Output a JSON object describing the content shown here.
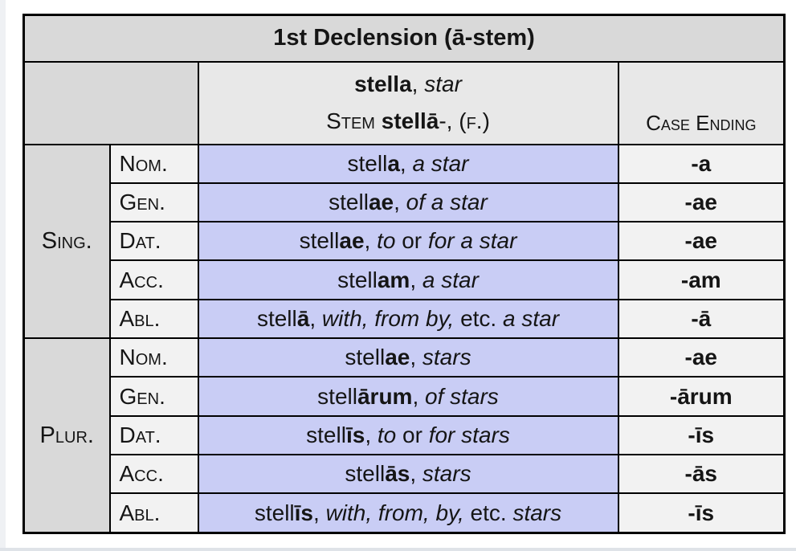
{
  "window": {
    "background": "#ffffff",
    "left_edge_color": "#eff1f4",
    "bottom_edge_color": "#dfe3e8"
  },
  "colors": {
    "border": "#000000",
    "title_bg": "#d9d9d9",
    "header_bg": "#e8e8e8",
    "group_bg": "#d9d9d9",
    "case_label_bg": "#f2f2f2",
    "latin_bg": "#c9cdf5",
    "ending_bg": "#f2f2f2",
    "text": "#151515"
  },
  "table": {
    "title": "1st Declension (ā-stem)",
    "header": {
      "word_line": [
        {
          "t": "stella",
          "s": "b"
        },
        {
          "t": ", ",
          "s": "n"
        },
        {
          "t": "star",
          "s": "i"
        }
      ],
      "stem_line": [
        {
          "t": "Stem ",
          "s": "sc"
        },
        {
          "t": "stellā",
          "s": "b"
        },
        {
          "t": "-, ",
          "s": "n"
        },
        {
          "t": "(f.)",
          "s": "sc"
        }
      ],
      "case_ending_label": "Case Ending"
    },
    "groups": [
      {
        "label": "Sing.",
        "rows": [
          {
            "case": "Nom.",
            "latin": [
              {
                "t": "stell",
                "s": "n"
              },
              {
                "t": "a",
                "s": "b"
              },
              {
                "t": ", ",
                "s": "n"
              },
              {
                "t": "a star",
                "s": "i"
              }
            ],
            "ending": "-a"
          },
          {
            "case": "Gen.",
            "latin": [
              {
                "t": "stell",
                "s": "n"
              },
              {
                "t": "ae",
                "s": "b"
              },
              {
                "t": ", ",
                "s": "n"
              },
              {
                "t": "of a star",
                "s": "i"
              }
            ],
            "ending": "-ae"
          },
          {
            "case": "Dat.",
            "latin": [
              {
                "t": "stell",
                "s": "n"
              },
              {
                "t": "ae",
                "s": "b"
              },
              {
                "t": ", ",
                "s": "n"
              },
              {
                "t": "to",
                "s": "i"
              },
              {
                "t": " or ",
                "s": "n"
              },
              {
                "t": "for a star",
                "s": "i"
              }
            ],
            "ending": "-ae"
          },
          {
            "case": "Acc.",
            "latin": [
              {
                "t": "stell",
                "s": "n"
              },
              {
                "t": "am",
                "s": "b"
              },
              {
                "t": ", ",
                "s": "n"
              },
              {
                "t": "a star",
                "s": "i"
              }
            ],
            "ending": "-am"
          },
          {
            "case": "Abl.",
            "latin": [
              {
                "t": "stell",
                "s": "n"
              },
              {
                "t": "ā",
                "s": "b"
              },
              {
                "t": ", ",
                "s": "n"
              },
              {
                "t": "with, from by,",
                "s": "i"
              },
              {
                "t": " etc. ",
                "s": "n"
              },
              {
                "t": "a star",
                "s": "i"
              }
            ],
            "ending": "-ā"
          }
        ]
      },
      {
        "label": "Plur.",
        "rows": [
          {
            "case": "Nom.",
            "latin": [
              {
                "t": "stell",
                "s": "n"
              },
              {
                "t": "ae",
                "s": "b"
              },
              {
                "t": ", ",
                "s": "n"
              },
              {
                "t": "stars",
                "s": "i"
              }
            ],
            "ending": "-ae"
          },
          {
            "case": "Gen.",
            "latin": [
              {
                "t": "stell",
                "s": "n"
              },
              {
                "t": "ārum",
                "s": "b"
              },
              {
                "t": ", ",
                "s": "n"
              },
              {
                "t": "of stars",
                "s": "i"
              }
            ],
            "ending": "-ārum"
          },
          {
            "case": "Dat.",
            "latin": [
              {
                "t": "stell",
                "s": "n"
              },
              {
                "t": "īs",
                "s": "b"
              },
              {
                "t": ", ",
                "s": "n"
              },
              {
                "t": "to",
                "s": "i"
              },
              {
                "t": " or ",
                "s": "n"
              },
              {
                "t": "for stars",
                "s": "i"
              }
            ],
            "ending": "-īs"
          },
          {
            "case": "Acc.",
            "latin": [
              {
                "t": "stell",
                "s": "n"
              },
              {
                "t": "ās",
                "s": "b"
              },
              {
                "t": ", ",
                "s": "n"
              },
              {
                "t": "stars",
                "s": "i"
              }
            ],
            "ending": "-ās"
          },
          {
            "case": "Abl.",
            "latin": [
              {
                "t": "stell",
                "s": "n"
              },
              {
                "t": "īs",
                "s": "b"
              },
              {
                "t": ", ",
                "s": "n"
              },
              {
                "t": "with, from, by,",
                "s": "i"
              },
              {
                "t": " etc. ",
                "s": "n"
              },
              {
                "t": "stars",
                "s": "i"
              }
            ],
            "ending": "-īs"
          }
        ]
      }
    ]
  }
}
